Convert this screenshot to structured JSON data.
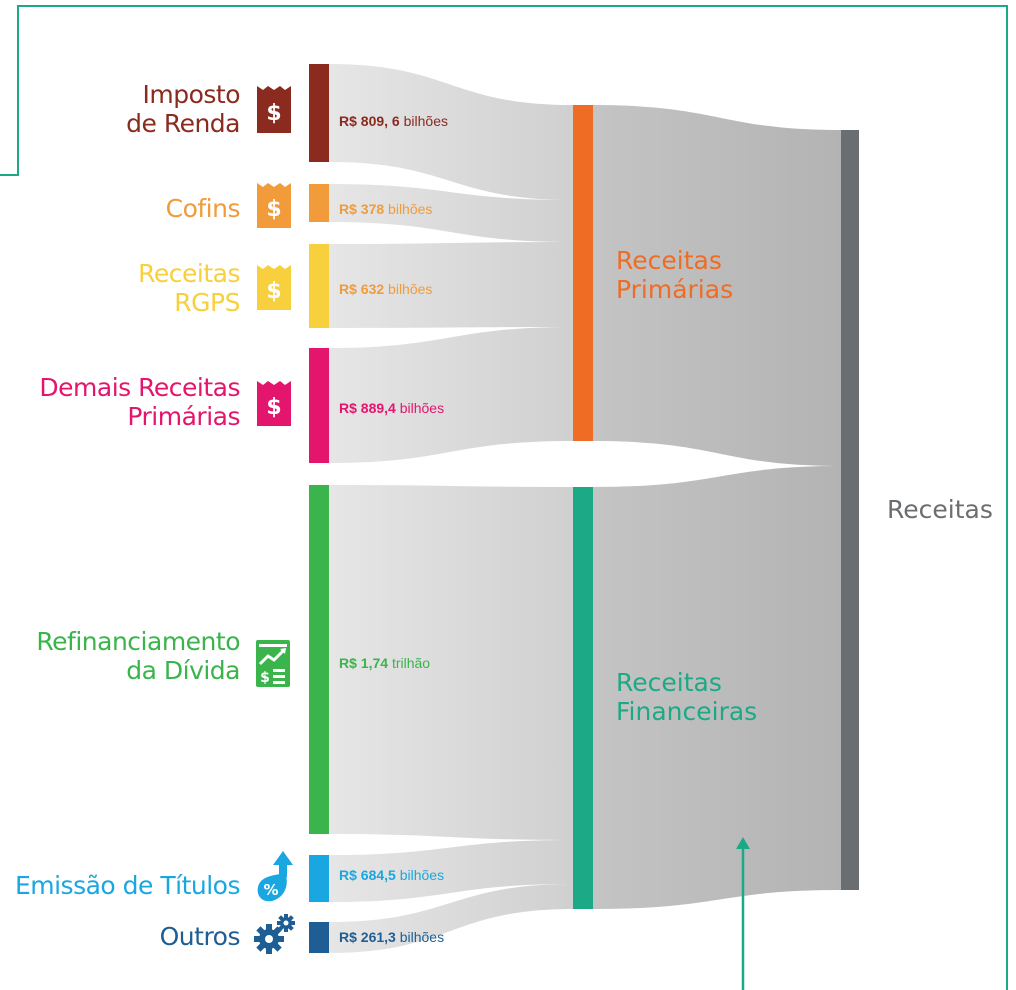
{
  "sources": [
    {
      "key": "ir",
      "lines": [
        "Imposto",
        "de Renda"
      ],
      "amount_bold": "R$ 809, 6",
      "amount_unit": "bilhões",
      "color": "#8b2a1e",
      "icon": "receipt-dollar-icon"
    },
    {
      "key": "cofins",
      "lines": [
        "Cofins"
      ],
      "amount_bold": "R$ 378",
      "amount_unit": "bilhões",
      "color": "#f19b3b",
      "icon": "receipt-dollar-icon"
    },
    {
      "key": "rgps",
      "lines": [
        "Receitas",
        "RGPS"
      ],
      "amount_bold": "R$ 632",
      "amount_unit": "bilhões",
      "color": "#f8cf3c",
      "icon": "receipt-dollar-icon"
    },
    {
      "key": "demais",
      "lines": [
        "Demais Receitas",
        "Primárias"
      ],
      "amount_bold": "R$ 889,4",
      "amount_unit": "bilhões",
      "color": "#e4156d",
      "icon": "receipt-dollar-icon"
    },
    {
      "key": "refin",
      "lines": [
        "Refinanciamento",
        "da Dívida"
      ],
      "amount_bold": "R$ 1,74",
      "amount_unit": "trilhão",
      "color": "#3ab44b",
      "icon": "chart-document-icon"
    },
    {
      "key": "emiss",
      "lines": [
        "Emissão de Títulos"
      ],
      "amount_bold": "R$ 684,5",
      "amount_unit": "bilhões",
      "color": "#1aa7e1",
      "icon": "percent-arrow-icon"
    },
    {
      "key": "outros",
      "lines": [
        "Outros"
      ],
      "amount_bold": "R$ 261,3",
      "amount_unit": "bilhões",
      "color": "#1e5e94",
      "icon": "gears-icon"
    }
  ],
  "groups": [
    {
      "key": "primarias",
      "lines": [
        "Receitas",
        "Primárias"
      ],
      "color": "#ef6c25"
    },
    {
      "key": "financeiras",
      "lines": [
        "Receitas",
        "Financeiras"
      ],
      "color": "#1ca985"
    }
  ],
  "total": {
    "label": "Receitas",
    "color": "#6b6e70"
  },
  "colors": {
    "border": "#1ca985",
    "flow_light": "#e0e0e0",
    "flow_dark": "#bdbdbd"
  }
}
